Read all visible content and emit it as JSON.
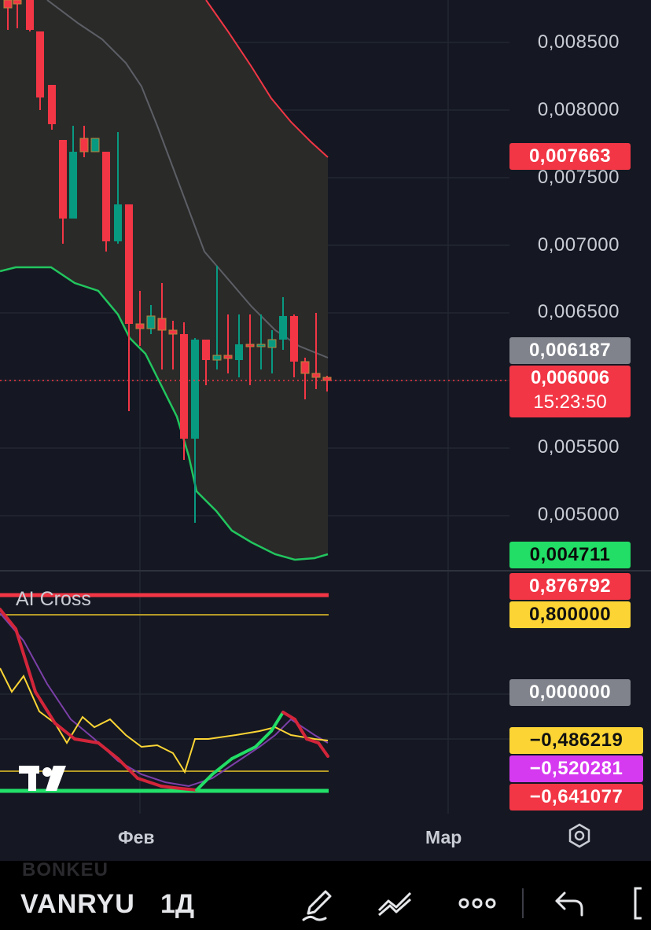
{
  "price_axis": {
    "labels": [
      "0,008500",
      "0,008000",
      "0,007500",
      "0,007000",
      "0,006500",
      "0,005500",
      "0,005000"
    ],
    "tags": {
      "upper_band": {
        "value": "0,007663",
        "color": "#f23645"
      },
      "middle_band": {
        "value": "0,006187",
        "color": "#8a8d95"
      },
      "last_price": {
        "value": "0,006006",
        "countdown": "15:23:50",
        "color": "#f23645"
      },
      "lower_band": {
        "value": "0,004711",
        "color": "#22c55e"
      }
    }
  },
  "indicator": {
    "name": "AI Cross",
    "tags": {
      "upper_line": {
        "value": "0,876792",
        "color": "#f23645"
      },
      "level": {
        "value": "0,800000",
        "color": "#fcd535"
      },
      "zero": {
        "value": "0,000000",
        "color": "#8a8d95"
      },
      "fast": {
        "value": "−0,486219",
        "color": "#fcd535"
      },
      "mid": {
        "value": "−0,520281",
        "color": "#d63af0"
      },
      "slow": {
        "value": "−0,641077",
        "color": "#f23645"
      }
    }
  },
  "time_axis": {
    "months": [
      "Фев",
      "Мар"
    ]
  },
  "toolbar": {
    "ghost_symbol": "BONKEU",
    "symbol": "VANRYU",
    "interval": "1Д",
    "icons": [
      "pencil-icon",
      "indicators-icon",
      "more-icon",
      "undo-icon",
      "fullscreen-icon"
    ]
  },
  "colors": {
    "bg": "#151822",
    "up": "#089981",
    "down": "#f23645",
    "band_upper": "#f23645",
    "band_lower": "#22c55e",
    "band_mid": "#5d5f66"
  }
}
